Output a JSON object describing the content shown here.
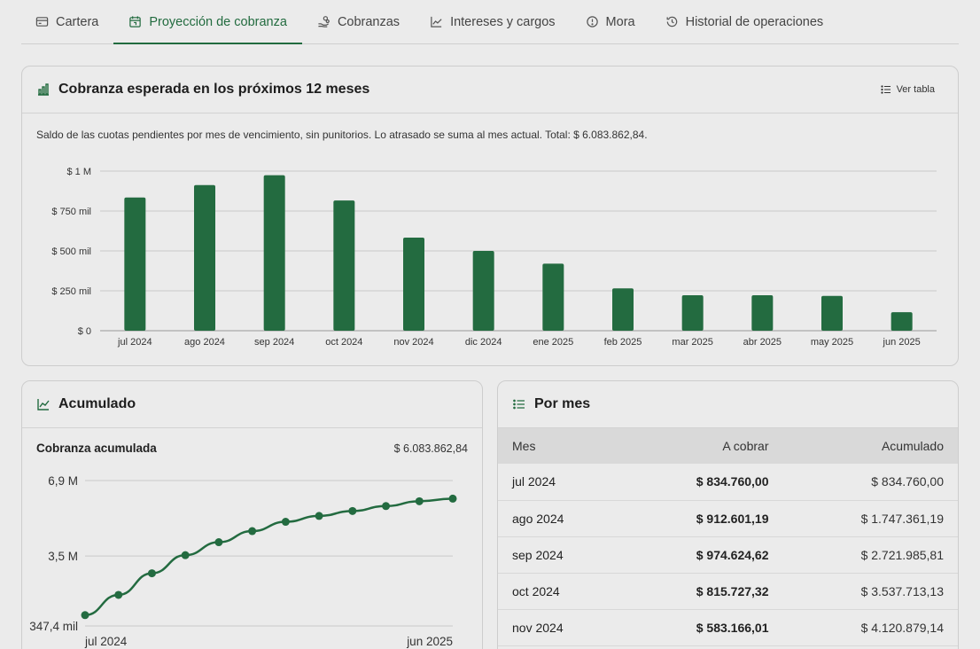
{
  "tabs": [
    {
      "label": "Cartera",
      "icon": "card-icon",
      "active": false
    },
    {
      "label": "Proyección de cobranza",
      "icon": "calendar-icon",
      "active": true
    },
    {
      "label": "Cobranzas",
      "icon": "hand-coins-icon",
      "active": false
    },
    {
      "label": "Intereses y cargos",
      "icon": "trend-icon",
      "active": false
    },
    {
      "label": "Mora",
      "icon": "alert-circle-icon",
      "active": false
    },
    {
      "label": "Historial de operaciones",
      "icon": "history-icon",
      "active": false
    }
  ],
  "colors": {
    "accent": "#226b3f",
    "bar": "#236b40"
  },
  "main_card": {
    "title": "Cobranza esperada en los próximos 12 meses",
    "table_button": "Ver tabla",
    "description": "Saldo de las cuotas pendientes por mes de vencimiento, sin punitorios. Lo atrasado se suma al mes actual. Total: $ 6.083.862,84."
  },
  "accumulated_card": {
    "title": "Acumulado",
    "subtitle": "Cobranza acumulada",
    "total": "$ 6.083.862,84"
  },
  "monthly_card": {
    "title": "Por mes",
    "columns": [
      "Mes",
      "A cobrar",
      "Acumulado"
    ],
    "rows": [
      [
        "jul 2024",
        "$ 834.760,00",
        "$ 834.760,00"
      ],
      [
        "ago 2024",
        "$ 912.601,19",
        "$ 1.747.361,19"
      ],
      [
        "sep 2024",
        "$ 974.624,62",
        "$ 2.721.985,81"
      ],
      [
        "oct 2024",
        "$ 815.727,32",
        "$ 3.537.713,13"
      ],
      [
        "nov 2024",
        "$ 583.166,01",
        "$ 4.120.879,14"
      ]
    ]
  },
  "chart_data": [
    {
      "type": "bar",
      "categories": [
        "jul 2024",
        "ago 2024",
        "sep 2024",
        "oct 2024",
        "nov 2024",
        "dic 2024",
        "ene 2025",
        "feb 2025",
        "mar 2025",
        "abr 2025",
        "may 2025",
        "jun 2025"
      ],
      "values": [
        834760.0,
        912601.19,
        974624.62,
        815727.32,
        583166.01,
        500000,
        420000,
        265000,
        222000,
        222000,
        218000,
        116000
      ],
      "ylim": [
        0,
        1000000
      ],
      "yticks": [
        {
          "value": 0,
          "label": "$ 0"
        },
        {
          "value": 250000,
          "label": "$ 250 mil"
        },
        {
          "value": 500000,
          "label": "$ 500 mil"
        },
        {
          "value": 750000,
          "label": "$ 750 mil"
        },
        {
          "value": 1000000,
          "label": "$ 1 M"
        }
      ],
      "grid": true
    },
    {
      "type": "line",
      "x": [
        "jul 2024",
        "ago 2024",
        "sep 2024",
        "oct 2024",
        "nov 2024",
        "dic 2024",
        "ene 2025",
        "feb 2025",
        "mar 2025",
        "abr 2025",
        "may 2025",
        "jun 2025"
      ],
      "values": [
        834760,
        1747361,
        2721986,
        3537713,
        4120879,
        4620879,
        5040879,
        5305879,
        5527879,
        5749879,
        5967879,
        6083863
      ],
      "ylim": [
        347400,
        6900000
      ],
      "yticks": [
        {
          "value": 347400,
          "label": "347,4 mil"
        },
        {
          "value": 3500000,
          "label": "3,5 M"
        },
        {
          "value": 6900000,
          "label": "6,9 M"
        }
      ],
      "xtick_labels": [
        "jul 2024",
        "jun 2025"
      ],
      "grid": true
    }
  ]
}
